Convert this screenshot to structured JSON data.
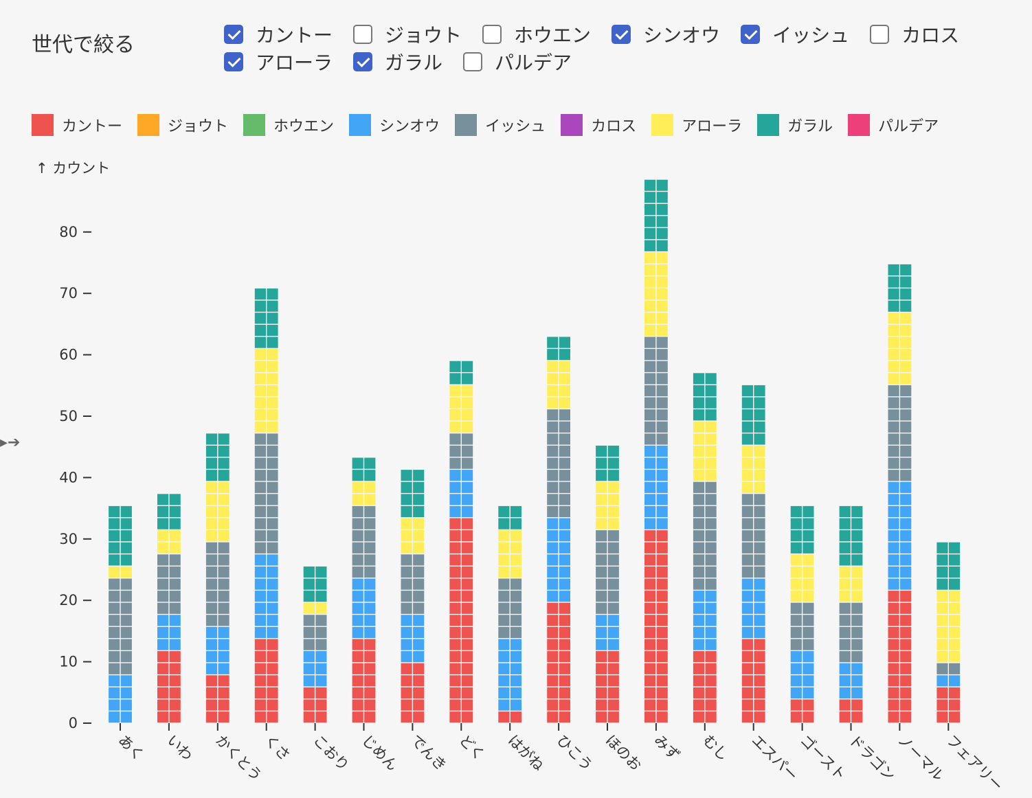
{
  "filter": {
    "title": "世代で絞る",
    "options": [
      {
        "label": "カントー",
        "checked": true
      },
      {
        "label": "ジョウト",
        "checked": false
      },
      {
        "label": "ホウエン",
        "checked": false
      },
      {
        "label": "シンオウ",
        "checked": true
      },
      {
        "label": "イッシュ",
        "checked": true
      },
      {
        "label": "カロス",
        "checked": false
      },
      {
        "label": "アローラ",
        "checked": true
      },
      {
        "label": "ガラル",
        "checked": true
      },
      {
        "label": "パルデア",
        "checked": false
      }
    ]
  },
  "legend": [
    {
      "label": "カントー",
      "color": "#ef5350"
    },
    {
      "label": "ジョウト",
      "color": "#ffa726"
    },
    {
      "label": "ホウエン",
      "color": "#66bb6a"
    },
    {
      "label": "シンオウ",
      "color": "#42a5f5"
    },
    {
      "label": "イッシュ",
      "color": "#78909c"
    },
    {
      "label": "カロス",
      "color": "#ab47bc"
    },
    {
      "label": "アローラ",
      "color": "#ffee58"
    },
    {
      "label": "ガラル",
      "color": "#26a69a"
    },
    {
      "label": "パルデア",
      "color": "#ec407a"
    }
  ],
  "side_icon": "arrow-right-icon",
  "chart_data": {
    "type": "bar",
    "subtype": "stacked-waffle",
    "ylabel": "↑ カウント",
    "ylim": [
      0,
      90
    ],
    "yticks": [
      0,
      10,
      20,
      30,
      40,
      50,
      60,
      70,
      80
    ],
    "grid": false,
    "categories": [
      "あく",
      "いわ",
      "かくとう",
      "くさ",
      "こおり",
      "じめん",
      "でんき",
      "どく",
      "はがね",
      "ひこう",
      "ほのお",
      "みず",
      "むし",
      "エスパー",
      "ゴースト",
      "ドラゴン",
      "ノーマル",
      "フェアリー"
    ],
    "series": [
      {
        "name": "カントー",
        "color": "#ef5350",
        "values": [
          0,
          12,
          8,
          14,
          6,
          14,
          10,
          34,
          2,
          20,
          12,
          32,
          12,
          14,
          4,
          4,
          22,
          6
        ]
      },
      {
        "name": "シンオウ",
        "color": "#42a5f5",
        "values": [
          8,
          6,
          8,
          14,
          6,
          10,
          8,
          8,
          12,
          14,
          6,
          14,
          10,
          10,
          8,
          6,
          18,
          2
        ]
      },
      {
        "name": "イッシュ",
        "color": "#78909c",
        "values": [
          16,
          10,
          14,
          20,
          6,
          12,
          10,
          6,
          10,
          18,
          14,
          18,
          18,
          14,
          8,
          10,
          16,
          2
        ]
      },
      {
        "name": "アローラ",
        "color": "#ffee58",
        "values": [
          2,
          4,
          10,
          14,
          2,
          4,
          6,
          8,
          8,
          8,
          8,
          14,
          10,
          8,
          8,
          6,
          12,
          12
        ]
      },
      {
        "name": "ガラル",
        "color": "#26a69a",
        "values": [
          10,
          6,
          8,
          10,
          6,
          4,
          8,
          4,
          4,
          4,
          6,
          12,
          8,
          10,
          8,
          10,
          8,
          8
        ]
      }
    ]
  }
}
